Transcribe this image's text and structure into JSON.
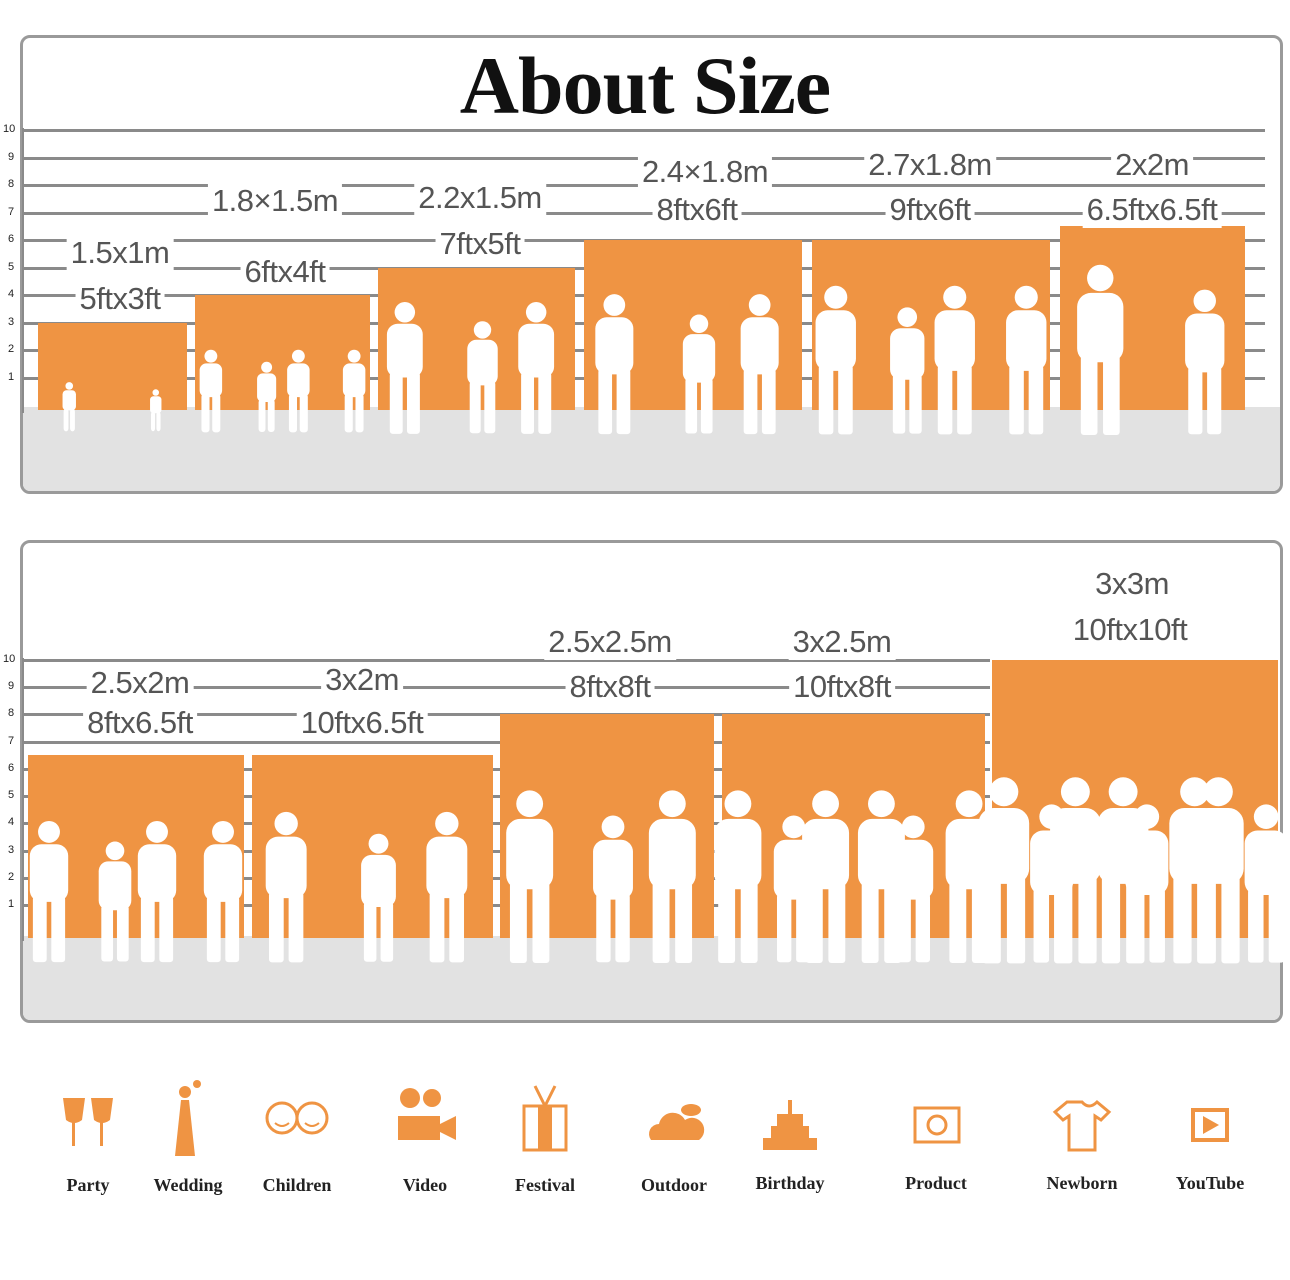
{
  "title": "About Size",
  "accent_color": "#ef9443",
  "axis_ticks": [
    "1",
    "2",
    "3",
    "4",
    "5",
    "6",
    "7",
    "8",
    "9",
    "10"
  ],
  "top_panel": {
    "sizes": [
      {
        "metric": "1.5x1m",
        "imperial": "5ftx3ft",
        "level": 3
      },
      {
        "metric": "1.8×1.5m",
        "imperial": "6ftx4ft",
        "level": 4
      },
      {
        "metric": "2.2x1.5m",
        "imperial": "7ftx5ft",
        "level": 5
      },
      {
        "metric": "2.4×1.8m",
        "imperial": "8ftx6ft",
        "level": 6
      },
      {
        "metric": "2.7x1.8m",
        "imperial": "9ftx6ft",
        "level": 6
      },
      {
        "metric": "2x2m",
        "imperial": "6.5ftx6.5ft",
        "level": 6.5
      }
    ]
  },
  "bottom_panel": {
    "sizes": [
      {
        "metric": "2.5x2m",
        "imperial": "8ftx6.5ft",
        "level": 6.5
      },
      {
        "metric": "3x2m",
        "imperial": "10ftx6.5ft",
        "level": 6.5
      },
      {
        "metric": "2.5x2.5m",
        "imperial": "8ftx8ft",
        "level": 8
      },
      {
        "metric": "3x2.5m",
        "imperial": "10ftx8ft",
        "level": 8
      },
      {
        "metric": "3x3m",
        "imperial": "10ftx10ft",
        "level": 10
      }
    ]
  },
  "uses": [
    {
      "label": "Party",
      "icon": "wine-glasses-icon"
    },
    {
      "label": "Wedding",
      "icon": "bride-icon"
    },
    {
      "label": "Children",
      "icon": "children-faces-icon"
    },
    {
      "label": "Video",
      "icon": "movie-camera-icon"
    },
    {
      "label": "Festival",
      "icon": "gift-box-icon"
    },
    {
      "label": "Outdoor",
      "icon": "cloud-icon"
    },
    {
      "label": "Birthday",
      "icon": "cake-icon"
    },
    {
      "label": "Product",
      "icon": "camera-icon"
    },
    {
      "label": "Newborn",
      "icon": "baby-onesie-icon"
    },
    {
      "label": "YouTube",
      "icon": "play-button-icon"
    }
  ]
}
